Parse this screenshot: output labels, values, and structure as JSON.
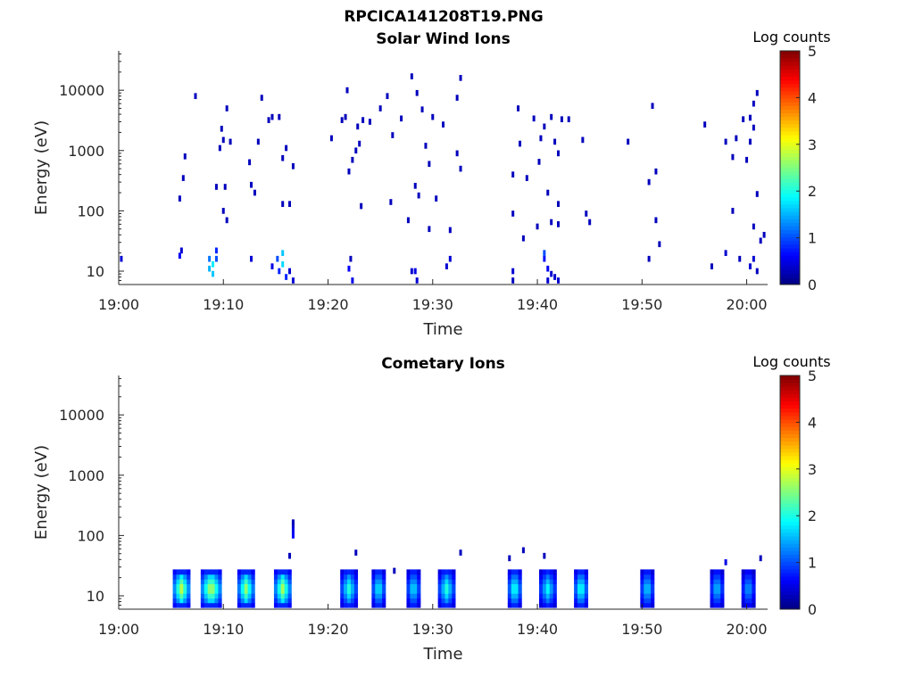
{
  "figure": {
    "title": "RPCICA141208T19.PNG"
  },
  "colormap": "jet",
  "colors": {
    "axis": "#262626",
    "background": "#ffffff"
  },
  "chart_data": [
    {
      "type": "heatmap",
      "title": "Solar Wind Ions",
      "xlabel": "Time",
      "ylabel": "Energy (eV)",
      "yscale": "log",
      "xlim": [
        "19:00",
        "20:02"
      ],
      "ylim": [
        6,
        45000
      ],
      "x_ticks": [
        "19:00",
        "19:10",
        "19:20",
        "19:30",
        "19:40",
        "19:50",
        "20:00"
      ],
      "y_ticks": [
        "10",
        "100",
        "1000",
        "10000"
      ],
      "colorbar": {
        "label": "Log counts",
        "range": [
          0,
          5
        ],
        "ticks": [
          "0",
          "1",
          "2",
          "3",
          "4",
          "5"
        ]
      },
      "points": [
        [
          "19:00:15",
          16,
          0.4
        ],
        [
          "19:05:50",
          18,
          0.6
        ],
        [
          "19:06:00",
          22,
          0.4
        ],
        [
          "19:08:40",
          16,
          1.2
        ],
        [
          "19:08:40",
          11,
          1.5
        ],
        [
          "19:09:00",
          13,
          1.8
        ],
        [
          "19:09:00",
          9,
          1.6
        ],
        [
          "19:09:20",
          16,
          1.0
        ],
        [
          "19:09:20",
          22,
          0.8
        ],
        [
          "19:12:40",
          16,
          0.4
        ],
        [
          "19:14:40",
          12,
          0.5
        ],
        [
          "19:15:10",
          16,
          1.0
        ],
        [
          "19:15:20",
          10,
          0.8
        ],
        [
          "19:15:40",
          20,
          1.6
        ],
        [
          "19:15:40",
          13,
          1.7
        ],
        [
          "19:16:00",
          8,
          0.8
        ],
        [
          "19:16:20",
          10,
          0.4
        ],
        [
          "19:16:40",
          7,
          0.4
        ],
        [
          "19:22:00",
          11,
          0.6
        ],
        [
          "19:22:10",
          16,
          0.3
        ],
        [
          "19:22:20",
          7,
          0.5
        ],
        [
          "19:28:00",
          10,
          0.4
        ],
        [
          "19:28:20",
          10,
          0.5
        ],
        [
          "19:28:30",
          7,
          0.4
        ],
        [
          "19:31:20",
          12,
          0.4
        ],
        [
          "19:31:40",
          16,
          0.4
        ],
        [
          "19:37:40",
          10,
          0.4
        ],
        [
          "19:37:40",
          7,
          0.3
        ],
        [
          "19:40:40",
          16,
          0.7
        ],
        [
          "19:40:40",
          20,
          1.0
        ],
        [
          "19:41:00",
          11,
          0.6
        ],
        [
          "19:41:00",
          7,
          0.4
        ],
        [
          "19:41:20",
          9,
          0.4
        ],
        [
          "19:41:40",
          8,
          0.4
        ],
        [
          "19:42:00",
          7,
          0.4
        ],
        [
          "19:50:40",
          16,
          0.3
        ],
        [
          "19:56:40",
          12,
          0.3
        ],
        [
          "19:58:00",
          20,
          0.4
        ],
        [
          "19:59:20",
          16,
          0.3
        ],
        [
          "20:00:20",
          12,
          0.4
        ],
        [
          "20:00:40",
          16,
          0.4
        ],
        [
          "20:01:00",
          10,
          0.3
        ],
        [
          "20:01:20",
          32,
          0.3
        ],
        [
          "20:01:40",
          40,
          0.3
        ],
        [
          "19:05:50",
          160,
          0.3
        ],
        [
          "19:06:10",
          350,
          0.3
        ],
        [
          "19:06:20",
          800,
          0.3
        ],
        [
          "19:07:20",
          8000,
          0.3
        ],
        [
          "19:09:20",
          250,
          0.3
        ],
        [
          "19:09:40",
          1100,
          0.3
        ],
        [
          "19:09:50",
          2300,
          0.3
        ],
        [
          "19:10:00",
          100,
          0.3
        ],
        [
          "19:10:00",
          1500,
          0.3
        ],
        [
          "19:10:10",
          250,
          0.3
        ],
        [
          "19:10:20",
          5000,
          0.3
        ],
        [
          "19:10:20",
          70,
          0.3
        ],
        [
          "19:10:40",
          1400,
          0.3
        ],
        [
          "19:12:30",
          640,
          0.3
        ],
        [
          "19:12:40",
          270,
          0.3
        ],
        [
          "19:13:00",
          200,
          0.3
        ],
        [
          "19:13:20",
          1400,
          0.3
        ],
        [
          "19:13:40",
          7500,
          0.3
        ],
        [
          "19:14:20",
          3200,
          0.3
        ],
        [
          "19:14:40",
          3600,
          0.3
        ],
        [
          "19:15:20",
          3600,
          0.3
        ],
        [
          "19:15:40",
          750,
          0.3
        ],
        [
          "19:15:40",
          130,
          0.3
        ],
        [
          "19:16:00",
          1100,
          0.3
        ],
        [
          "19:16:20",
          130,
          0.3
        ],
        [
          "19:16:40",
          550,
          0.3
        ],
        [
          "19:20:20",
          1600,
          0.3
        ],
        [
          "19:21:20",
          3200,
          0.3
        ],
        [
          "19:21:40",
          3600,
          0.3
        ],
        [
          "19:21:50",
          10000,
          0.3
        ],
        [
          "19:22:00",
          450,
          0.3
        ],
        [
          "19:22:20",
          700,
          0.3
        ],
        [
          "19:22:40",
          1000,
          0.3
        ],
        [
          "19:22:50",
          2500,
          0.3
        ],
        [
          "19:23:00",
          1300,
          0.3
        ],
        [
          "19:23:10",
          120,
          0.3
        ],
        [
          "19:23:20",
          3200,
          0.3
        ],
        [
          "19:24:00",
          3000,
          0.3
        ],
        [
          "19:25:00",
          5000,
          0.3
        ],
        [
          "19:25:40",
          8000,
          0.3
        ],
        [
          "19:26:00",
          140,
          0.3
        ],
        [
          "19:26:10",
          1800,
          0.3
        ],
        [
          "19:27:00",
          3400,
          0.3
        ],
        [
          "19:27:40",
          70,
          0.3
        ],
        [
          "19:28:00",
          17000,
          0.3
        ],
        [
          "19:28:20",
          260,
          0.3
        ],
        [
          "19:28:30",
          9000,
          0.3
        ],
        [
          "19:28:40",
          180,
          0.3
        ],
        [
          "19:29:00",
          4800,
          0.3
        ],
        [
          "19:29:20",
          1200,
          0.3
        ],
        [
          "19:29:40",
          600,
          0.3
        ],
        [
          "19:29:40",
          50,
          0.3
        ],
        [
          "19:30:00",
          3600,
          0.3
        ],
        [
          "19:30:20",
          160,
          0.3
        ],
        [
          "19:31:00",
          2700,
          0.3
        ],
        [
          "19:32:20",
          7500,
          0.3
        ],
        [
          "19:32:40",
          16000,
          0.3
        ],
        [
          "19:32:20",
          900,
          0.3
        ],
        [
          "19:32:40",
          500,
          0.3
        ],
        [
          "19:31:40",
          48,
          0.3
        ],
        [
          "19:37:40",
          400,
          0.3
        ],
        [
          "19:37:40",
          90,
          0.3
        ],
        [
          "19:38:10",
          5000,
          0.3
        ],
        [
          "19:38:20",
          1300,
          0.3
        ],
        [
          "19:38:40",
          35,
          0.3
        ],
        [
          "19:39:00",
          350,
          0.3
        ],
        [
          "19:39:40",
          3400,
          0.3
        ],
        [
          "19:40:00",
          55,
          0.3
        ],
        [
          "19:40:10",
          650,
          0.3
        ],
        [
          "19:40:20",
          1600,
          0.3
        ],
        [
          "19:40:40",
          2500,
          0.3
        ],
        [
          "19:41:00",
          200,
          0.3
        ],
        [
          "19:41:20",
          3600,
          0.3
        ],
        [
          "19:41:20",
          65,
          0.3
        ],
        [
          "19:41:40",
          1400,
          0.3
        ],
        [
          "19:42:00",
          900,
          0.3
        ],
        [
          "19:42:00",
          60,
          0.3
        ],
        [
          "19:42:20",
          3300,
          0.3
        ],
        [
          "19:42:00",
          130,
          0.3
        ],
        [
          "19:43:00",
          3300,
          0.3
        ],
        [
          "19:44:20",
          1500,
          0.3
        ],
        [
          "19:44:40",
          90,
          0.3
        ],
        [
          "19:45:00",
          65,
          0.3
        ],
        [
          "19:48:40",
          1400,
          0.3
        ],
        [
          "19:50:40",
          300,
          0.3
        ],
        [
          "19:51:00",
          5500,
          0.3
        ],
        [
          "19:51:20",
          450,
          0.3
        ],
        [
          "19:51:20",
          70,
          0.3
        ],
        [
          "19:51:40",
          28,
          0.3
        ],
        [
          "19:56:00",
          2700,
          0.3
        ],
        [
          "19:58:00",
          1400,
          0.3
        ],
        [
          "19:58:40",
          100,
          0.3
        ],
        [
          "19:58:40",
          780,
          0.3
        ],
        [
          "19:59:00",
          1600,
          0.3
        ],
        [
          "19:59:40",
          3300,
          0.3
        ],
        [
          "20:00:00",
          700,
          0.3
        ],
        [
          "20:00:20",
          1400,
          0.3
        ],
        [
          "20:00:20",
          3500,
          0.3
        ],
        [
          "20:00:40",
          6000,
          0.3
        ],
        [
          "20:00:40",
          2400,
          0.3
        ],
        [
          "20:01:00",
          9000,
          0.3
        ],
        [
          "20:01:00",
          190,
          0.3
        ],
        [
          "20:00:40",
          55,
          0.3
        ]
      ]
    },
    {
      "type": "heatmap",
      "title": "Cometary Ions",
      "xlabel": "Time",
      "ylabel": "Energy (eV)",
      "yscale": "log",
      "xlim": [
        "19:00",
        "20:02"
      ],
      "ylim": [
        6,
        45000
      ],
      "x_ticks": [
        "19:00",
        "19:10",
        "19:20",
        "19:30",
        "19:40",
        "19:50",
        "20:00"
      ],
      "y_ticks": [
        "10",
        "100",
        "1000",
        "10000"
      ],
      "colorbar": {
        "label": "Log counts",
        "range": [
          0,
          5
        ],
        "ticks": [
          "0",
          "1",
          "2",
          "3",
          "4",
          "5"
        ]
      },
      "bursts": [
        {
          "start": "19:05:20",
          "end": "19:06:40",
          "peak": 3.0
        },
        {
          "start": "19:08:00",
          "end": "19:09:40",
          "peak": 3.1
        },
        {
          "start": "19:11:30",
          "end": "19:12:50",
          "peak": 2.8
        },
        {
          "start": "19:15:00",
          "end": "19:16:20",
          "peak": 2.9
        },
        {
          "start": "19:21:20",
          "end": "19:22:40",
          "peak": 2.2
        },
        {
          "start": "19:24:20",
          "end": "19:25:20",
          "peak": 2.1
        },
        {
          "start": "19:27:40",
          "end": "19:28:40",
          "peak": 2.0
        },
        {
          "start": "19:30:40",
          "end": "19:32:00",
          "peak": 2.2
        },
        {
          "start": "19:37:20",
          "end": "19:38:20",
          "peak": 2.3
        },
        {
          "start": "19:40:20",
          "end": "19:41:40",
          "peak": 2.0
        },
        {
          "start": "19:43:40",
          "end": "19:44:40",
          "peak": 2.3
        },
        {
          "start": "19:50:00",
          "end": "19:51:00",
          "peak": 1.9
        },
        {
          "start": "19:56:40",
          "end": "19:57:40",
          "peak": 1.8
        },
        {
          "start": "19:59:40",
          "end": "20:00:40",
          "peak": 1.6
        }
      ],
      "points": [
        [
          "19:16:40",
          100,
          0.6
        ],
        [
          "19:16:40",
          125,
          0.5
        ],
        [
          "19:16:40",
          150,
          0.4
        ],
        [
          "19:16:40",
          165,
          0.3
        ],
        [
          "19:16:20",
          46,
          0.3
        ],
        [
          "19:22:40",
          52,
          0.3
        ],
        [
          "19:26:20",
          26,
          0.3
        ],
        [
          "19:32:40",
          52,
          0.3
        ],
        [
          "19:37:20",
          42,
          0.3
        ],
        [
          "19:38:40",
          57,
          0.3
        ],
        [
          "19:40:40",
          46,
          0.3
        ],
        [
          "19:58:00",
          36,
          0.5
        ],
        [
          "20:01:20",
          42,
          0.3
        ]
      ]
    }
  ]
}
